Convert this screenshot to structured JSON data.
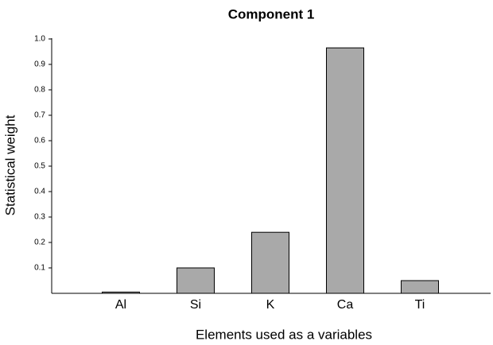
{
  "chart_data": {
    "type": "bar",
    "title": "Component 1",
    "x_label": "Elements used as a variables",
    "y_label": "Statistical weight",
    "categories": [
      "Al",
      "Si",
      "K",
      "Ca",
      "Ti"
    ],
    "values": [
      0.005,
      0.1,
      0.24,
      0.965,
      0.05
    ],
    "color": "#a9a9a9",
    "ylim": [
      0,
      1
    ],
    "yticks": [
      0.1,
      0.2,
      0.3,
      0.4,
      0.5,
      0.6,
      0.7,
      0.8,
      0.9,
      {
        "value": 1,
        "label": "1.0"
      }
    ],
    "grid": false
  }
}
